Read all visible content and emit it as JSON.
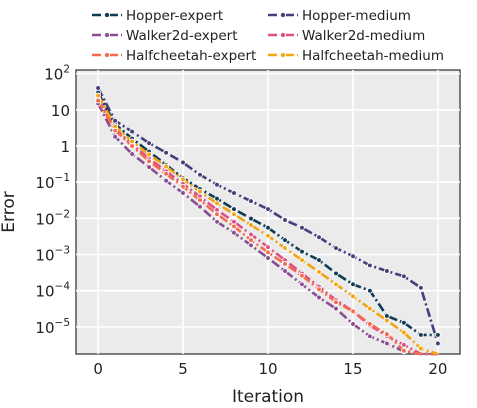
{
  "chart_data": {
    "type": "line",
    "title": "",
    "xlabel": "Iteration",
    "ylabel": "Error",
    "yscale": "log",
    "xlim": [
      -1.3,
      21.3
    ],
    "ylim_log10": [
      -5.75,
      2.1
    ],
    "grid": true,
    "background": "#ebebeb",
    "legend_position": "top",
    "x_ticks": [
      "0",
      "5",
      "10",
      "15",
      "20"
    ],
    "y_ticks": [
      {
        "value": 100,
        "base": "10",
        "exp": "2"
      },
      {
        "value": 10,
        "base": "10",
        "exp": ""
      },
      {
        "value": 1,
        "base": "1",
        "exp": ""
      },
      {
        "value": 0.1,
        "base": "10",
        "exp": "−1"
      },
      {
        "value": 0.01,
        "base": "10",
        "exp": "−2"
      },
      {
        "value": 0.001,
        "base": "10",
        "exp": "−3"
      },
      {
        "value": 0.0001,
        "base": "10",
        "exp": "−4"
      },
      {
        "value": 1e-05,
        "base": "10",
        "exp": "−5"
      }
    ],
    "x": [
      0,
      1,
      2,
      3,
      4,
      5,
      6,
      7,
      8,
      9,
      10,
      11,
      12,
      13,
      14,
      15,
      16,
      17,
      18,
      19,
      20
    ],
    "series": [
      {
        "name": "Hopper-expert",
        "color": "#0f3b57",
        "dash": "dashdot",
        "values": [
          30,
          4,
          1.6,
          0.7,
          0.3,
          0.13,
          0.065,
          0.035,
          0.018,
          0.0098,
          0.0055,
          0.0025,
          0.0012,
          0.0007,
          0.0003,
          0.00015,
          0.0001,
          2e-05,
          1.3e-05,
          6e-06,
          6e-06
        ]
      },
      {
        "name": "Hopper-medium",
        "color": "#463e7b",
        "dash": "dashdot",
        "values": [
          40,
          5,
          2.5,
          1.2,
          0.65,
          0.35,
          0.16,
          0.085,
          0.05,
          0.03,
          0.018,
          0.009,
          0.0055,
          0.003,
          0.0015,
          0.0009,
          0.0005,
          0.00035,
          0.00025,
          0.00012,
          3.5e-06
        ]
      },
      {
        "name": "Walker2d-expert",
        "color": "#8a4d93",
        "dash": "dashdot",
        "values": [
          15,
          1.8,
          0.6,
          0.26,
          0.11,
          0.05,
          0.021,
          0.008,
          0.004,
          0.0018,
          0.0008,
          0.00035,
          0.00015,
          6.5e-05,
          3.2e-05,
          1.2e-05,
          5.5e-06,
          3.5e-06,
          2.1e-06,
          1e-06,
          5.8e-07
        ]
      },
      {
        "name": "Walker2d-medium",
        "color": "#dd4f86",
        "dash": "dashdot",
        "values": [
          20,
          3,
          1.1,
          0.45,
          0.2,
          0.09,
          0.04,
          0.017,
          0.008,
          0.0036,
          0.0016,
          0.0007,
          0.0003,
          0.00013,
          5.5e-05,
          2.7e-05,
          1.1e-05,
          5.6e-06,
          3.2e-06,
          1.5e-06,
          1e-06
        ]
      },
      {
        "name": "Halfcheetah-expert",
        "color": "#f46a4e",
        "dash": "dashdot",
        "values": [
          18,
          2.7,
          1,
          0.38,
          0.17,
          0.075,
          0.032,
          0.013,
          0.006,
          0.0025,
          0.00115,
          0.00055,
          0.00026,
          0.00011,
          4.8e-05,
          2.7e-05,
          1.2e-05,
          6.3e-06,
          2.2e-06,
          9e-07,
          6.3e-07
        ]
      },
      {
        "name": "Halfcheetah-medium",
        "color": "#f3a411",
        "dash": "dashdot",
        "values": [
          25,
          3.5,
          1.35,
          0.58,
          0.27,
          0.12,
          0.055,
          0.026,
          0.013,
          0.0065,
          0.0033,
          0.0015,
          0.0007,
          0.00033,
          0.00015,
          7e-05,
          3.2e-05,
          1.5e-05,
          7e-06,
          2.5e-06,
          9e-07
        ]
      }
    ]
  }
}
